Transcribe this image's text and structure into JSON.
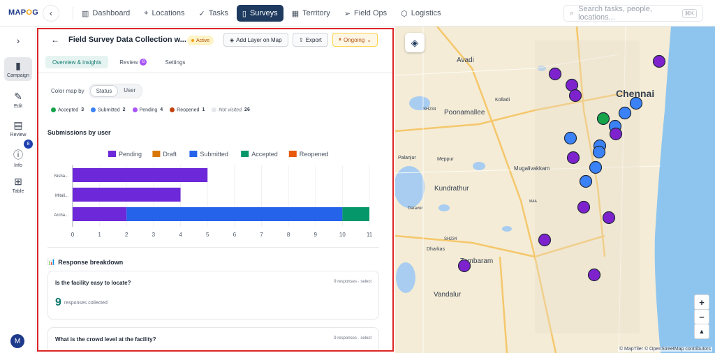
{
  "app": {
    "logo": "MAPOG"
  },
  "nav": [
    {
      "label": "Dashboard",
      "icon": "bar-chart-icon"
    },
    {
      "label": "Locations",
      "icon": "pin-icon"
    },
    {
      "label": "Tasks",
      "icon": "check-icon"
    },
    {
      "label": "Surveys",
      "icon": "clipboard-icon",
      "active": true
    },
    {
      "label": "Territory",
      "icon": "map-icon"
    },
    {
      "label": "Field Ops",
      "icon": "send-icon"
    },
    {
      "label": "Logistics",
      "icon": "box-icon"
    }
  ],
  "search": {
    "placeholder": "Search tasks, people, locations...",
    "shortcut": "⌘K"
  },
  "sidebar": {
    "items": [
      {
        "label": "Campaign"
      },
      {
        "label": "Edit"
      },
      {
        "label": "Review",
        "badge": "8"
      },
      {
        "label": "Info"
      },
      {
        "label": "Table"
      }
    ],
    "avatar": "M"
  },
  "panel": {
    "title": "Field Survey Data Collection w...",
    "status": "Active",
    "add_layer": "Add Layer on Map",
    "export": "Export",
    "ongoing": "Ongoing",
    "tabs": [
      {
        "label": "Overview & insights"
      },
      {
        "label": "Review",
        "badge": "8"
      },
      {
        "label": "Settings"
      }
    ],
    "color_map_label": "Color map by",
    "color_map_options": [
      "Status",
      "User"
    ],
    "legend": [
      {
        "label": "Accepted",
        "count": "3",
        "color": "#16a34a"
      },
      {
        "label": "Submitted",
        "count": "2",
        "color": "#3b82f6"
      },
      {
        "label": "Pending",
        "count": "4",
        "color": "#a855f7"
      },
      {
        "label": "Reopened",
        "count": "1",
        "color": "#c2410c"
      },
      {
        "label": "Not visited",
        "count": "26",
        "color": "#e5e7eb"
      }
    ],
    "submissions_title": "Submissions by user",
    "breakdown_title": "Response breakdown",
    "questions": [
      {
        "q": "Is the facility easy to locate?",
        "meta": "9 responses · select",
        "count": "9",
        "count_label": "responses collected"
      },
      {
        "q": "What is the crowd level at the facility?",
        "meta": "9 responses · select"
      }
    ]
  },
  "chart_data": {
    "type": "bar",
    "orientation": "horizontal",
    "stacked": true,
    "categories": [
      "Nisha...",
      "Mitali...",
      "Archa..."
    ],
    "series": [
      {
        "name": "Pending",
        "color": "#6d28d9",
        "values": [
          5,
          4,
          2
        ]
      },
      {
        "name": "Draft",
        "color": "#d97706",
        "values": [
          0,
          0,
          0
        ]
      },
      {
        "name": "Submitted",
        "color": "#2563eb",
        "values": [
          0,
          0,
          8
        ]
      },
      {
        "name": "Accepted",
        "color": "#059669",
        "values": [
          0,
          0,
          1
        ]
      },
      {
        "name": "Reopened",
        "color": "#ea580c",
        "values": [
          0,
          0,
          0
        ]
      }
    ],
    "xlim": [
      0,
      11
    ],
    "xticks": [
      "0",
      "1",
      "2",
      "3",
      "4",
      "5",
      "6",
      "7",
      "8",
      "9",
      "10",
      "11"
    ],
    "legend_position": "top"
  },
  "map": {
    "labels": [
      "Avadi",
      "Chennai",
      "Kolladi",
      "SH234",
      "Poonamallee",
      "Palanjur",
      "Meppur",
      "Mugalivakkam",
      "Kundrathur",
      "MAA",
      "Daravur",
      "SH234",
      "Dharkas",
      "Tambaram",
      "Vandalur"
    ],
    "attribution": "© MapTiler © OpenStreetMap contributors",
    "zoom_in": "+",
    "zoom_out": "−",
    "compass": "▲"
  }
}
